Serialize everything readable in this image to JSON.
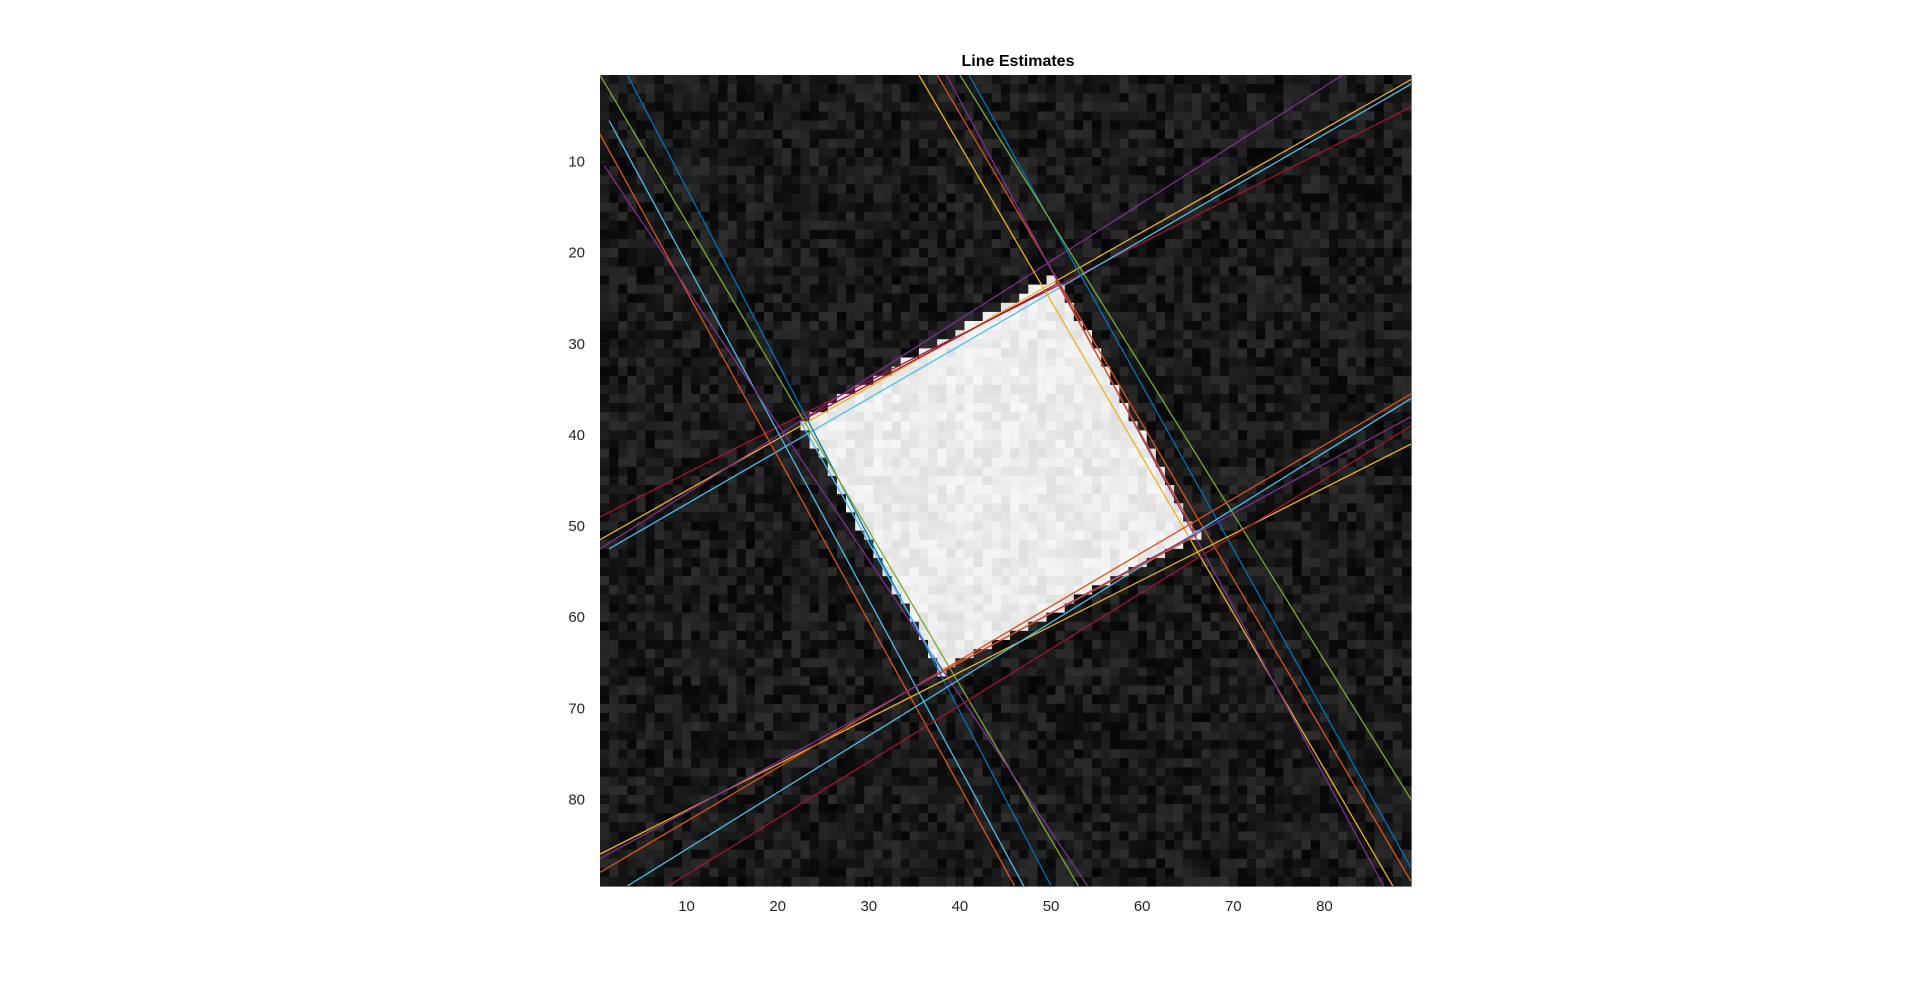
{
  "chart_data": {
    "type": "heatmap",
    "title": "Line Estimates",
    "xlabel": "",
    "ylabel": "",
    "xlim": [
      0.5,
      89.5
    ],
    "ylim": [
      0.5,
      89.5
    ],
    "y_direction": "reverse",
    "colormap": "gray",
    "grid": false,
    "x_ticks": [
      10,
      20,
      30,
      40,
      50,
      60,
      70,
      80
    ],
    "y_ticks": [
      10,
      20,
      30,
      40,
      50,
      60,
      70,
      80
    ],
    "x_tick_labels": [
      "10",
      "20",
      "30",
      "40",
      "50",
      "60",
      "70",
      "80"
    ],
    "y_tick_labels": [
      "10",
      "20",
      "30",
      "40",
      "50",
      "60",
      "70",
      "80"
    ],
    "image": {
      "size": [
        89,
        89
      ],
      "background_intensity": 0.1,
      "square_intensity": 0.92,
      "noise": 0.07,
      "square_corners": [
        [
          50.5,
          22.5
        ],
        [
          66,
          51
        ],
        [
          38,
          66
        ],
        [
          22.5,
          38.5
        ]
      ]
    },
    "line_colors": [
      "#0072BD",
      "#D95319",
      "#EDB120",
      "#7E2F8E",
      "#77AC30",
      "#4DBEEE",
      "#A2142F"
    ],
    "lines": [
      {
        "color": "#A2142F",
        "points": [
          [
            0.5,
            49
          ],
          [
            89.5,
            4
          ]
        ]
      },
      {
        "color": "#EDB120",
        "points": [
          [
            0.5,
            51.5
          ],
          [
            89.5,
            1
          ]
        ]
      },
      {
        "color": "#4DBEEE",
        "points": [
          [
            1.5,
            52.5
          ],
          [
            89.5,
            1.5
          ]
        ]
      },
      {
        "color": "#7E2F8E",
        "points": [
          [
            0.5,
            52.5
          ],
          [
            82,
            0.5
          ]
        ]
      },
      {
        "color": "#D95319",
        "points": [
          [
            37.5,
            0.5
          ],
          [
            89.5,
            89
          ]
        ]
      },
      {
        "color": "#EDB120",
        "points": [
          [
            35.5,
            0.5
          ],
          [
            87.5,
            89.5
          ]
        ]
      },
      {
        "color": "#0072BD",
        "points": [
          [
            41,
            0.5
          ],
          [
            89.5,
            87.5
          ]
        ]
      },
      {
        "color": "#77AC30",
        "points": [
          [
            40,
            0.5
          ],
          [
            89.5,
            80
          ]
        ]
      },
      {
        "color": "#7E2F8E",
        "points": [
          [
            38.5,
            0.5
          ],
          [
            86.5,
            89.5
          ]
        ]
      },
      {
        "color": "#4DBEEE",
        "points": [
          [
            1.5,
            5.5
          ],
          [
            47,
            89.5
          ]
        ]
      },
      {
        "color": "#0072BD",
        "points": [
          [
            3.5,
            0.5
          ],
          [
            50,
            89.5
          ]
        ]
      },
      {
        "color": "#77AC30",
        "points": [
          [
            0.5,
            0.5
          ],
          [
            53,
            89.5
          ]
        ]
      },
      {
        "color": "#D95319",
        "points": [
          [
            0.5,
            7
          ],
          [
            46,
            89.5
          ]
        ]
      },
      {
        "color": "#7E2F8E",
        "points": [
          [
            1,
            10.5
          ],
          [
            54,
            89.5
          ]
        ]
      },
      {
        "color": "#EDB120",
        "points": [
          [
            0.5,
            86
          ],
          [
            89.5,
            41
          ]
        ]
      },
      {
        "color": "#D95319",
        "points": [
          [
            0.5,
            88
          ],
          [
            89.5,
            35.5
          ]
        ]
      },
      {
        "color": "#4DBEEE",
        "points": [
          [
            3.5,
            89.5
          ],
          [
            89.5,
            36
          ]
        ]
      },
      {
        "color": "#7E2F8E",
        "points": [
          [
            0.5,
            86.5
          ],
          [
            89.5,
            38
          ]
        ]
      },
      {
        "color": "#A2142F",
        "points": [
          [
            8,
            89.5
          ],
          [
            89.5,
            39
          ]
        ]
      },
      {
        "color": "#A2142F",
        "points": [
          [
            22.5,
            38.5
          ],
          [
            50.5,
            23.5
          ]
        ]
      },
      {
        "color": "#D95319",
        "points": [
          [
            50.5,
            23
          ],
          [
            66,
            51
          ]
        ]
      },
      {
        "color": "#4DBEEE",
        "points": [
          [
            22.5,
            38.5
          ],
          [
            38,
            66
          ]
        ]
      },
      {
        "color": "#D95319",
        "points": [
          [
            38,
            66
          ],
          [
            66,
            51
          ]
        ]
      }
    ]
  }
}
